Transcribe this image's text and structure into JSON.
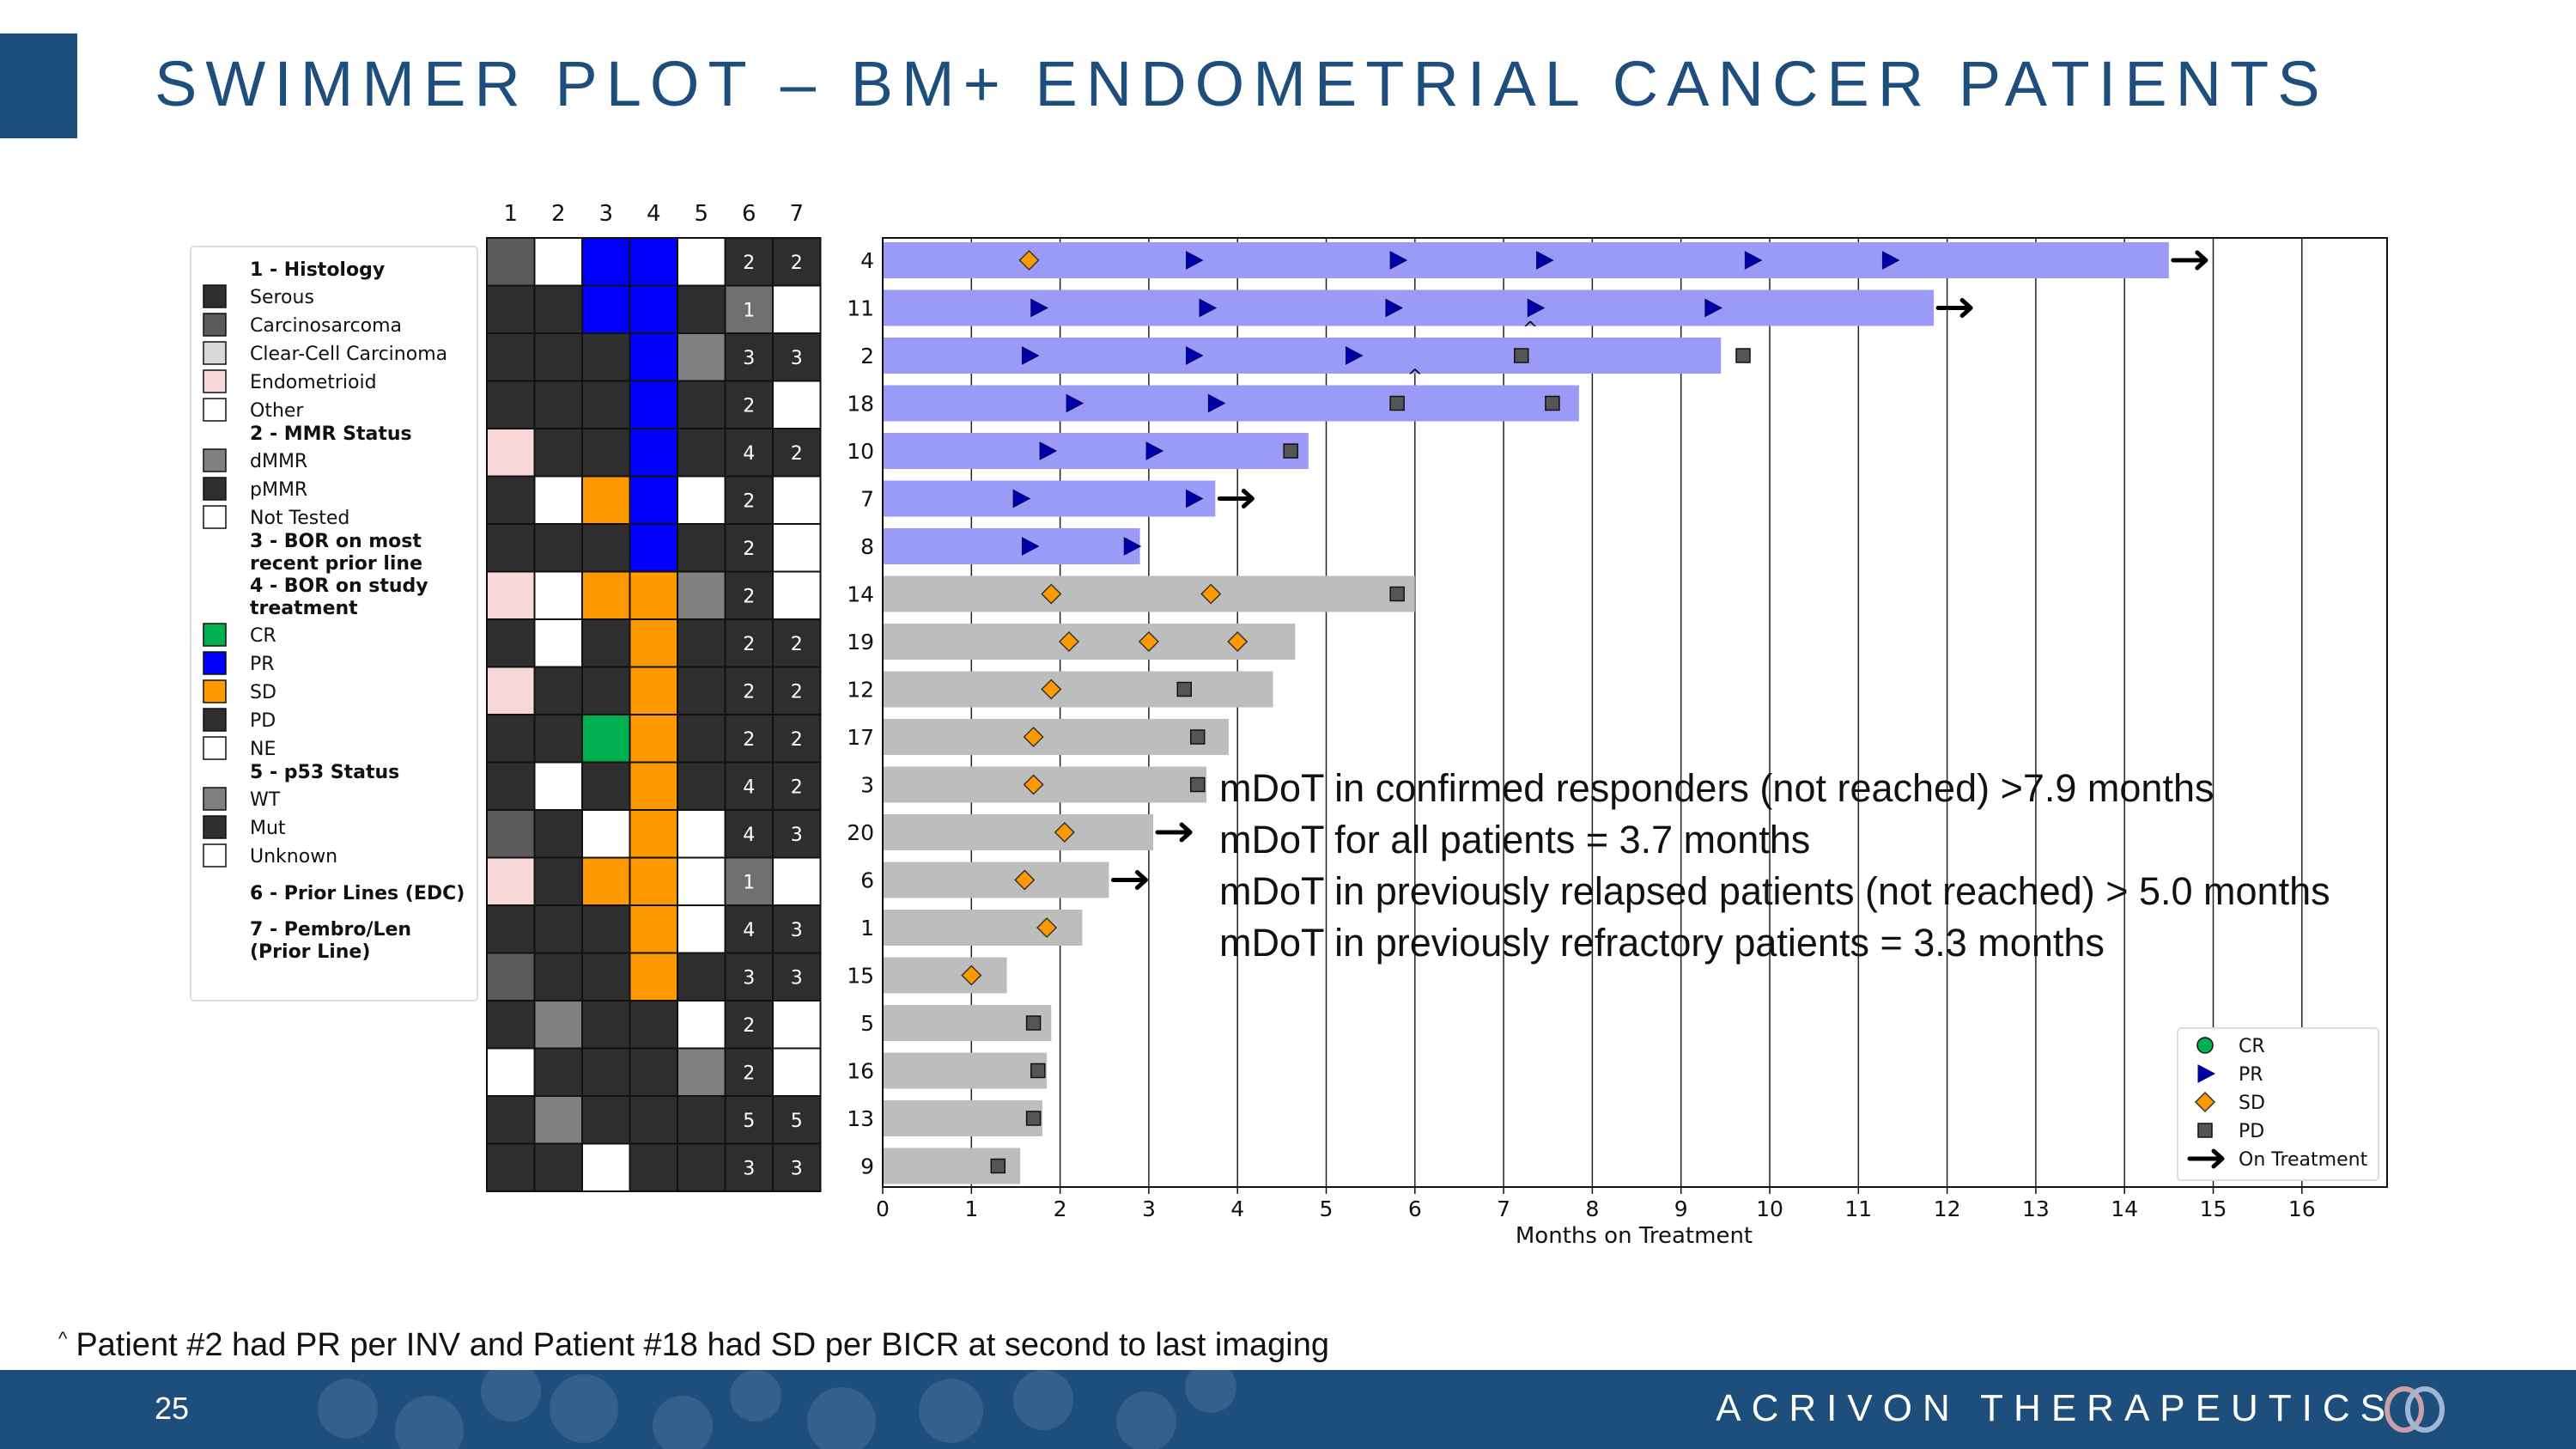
{
  "title": "SWIMMER PLOT – BM+ ENDOMETRIAL CANCER PATIENTS",
  "footnote": {
    "caret": "^",
    "text": "Patient #2 had PR per INV and Patient #18 had SD per BICR at second to last imaging"
  },
  "footer": {
    "page_number": "25",
    "company": "ACRIVON THERAPEUTICS"
  },
  "stats": [
    "mDoT in confirmed responders (not reached) >7.9 months",
    "mDoT for all patients = 3.7 months",
    "mDoT in previously relapsed patients (not reached) > 5.0 months",
    "mDoT in previously refractory patients = 3.3 months"
  ],
  "colors": {
    "brand": "#1d4e7c",
    "responder_bar": "#9b9bf7",
    "other_bar": "#bdbdbd",
    "cr": "#00b050",
    "pr": "#0000ff",
    "sd": "#ff9900",
    "pd": "#2e2e2e",
    "dark": "#2e2e2e",
    "mid": "#5a5a5a",
    "gray": "#808080",
    "light": "#d9d9d9",
    "pink": "#f8d7d7",
    "white": "#ffffff"
  },
  "chart_data": {
    "type": "swimmer",
    "xlabel": "Months on Treatment",
    "xlim": [
      0,
      17
    ],
    "xticks": [
      0,
      1,
      2,
      3,
      4,
      5,
      6,
      7,
      8,
      9,
      10,
      11,
      12,
      13,
      14,
      15,
      16
    ],
    "heatmap_columns": [
      "1",
      "2",
      "3",
      "4",
      "5",
      "6",
      "7"
    ],
    "annotation_caret": "^",
    "patients": [
      {
        "id": "4",
        "duration": 14.5,
        "responder": true,
        "ongoing": true,
        "caret_month": null,
        "events": [
          {
            "t": 1.65,
            "type": "SD"
          },
          {
            "t": 3.5,
            "type": "PR"
          },
          {
            "t": 5.8,
            "type": "PR"
          },
          {
            "t": 7.45,
            "type": "PR"
          },
          {
            "t": 9.8,
            "type": "PR"
          },
          {
            "t": 11.35,
            "type": "PR"
          }
        ],
        "cells": [
          "mid",
          "white",
          "pr",
          "pr",
          "white",
          "2",
          "2"
        ]
      },
      {
        "id": "11",
        "duration": 11.85,
        "responder": true,
        "ongoing": true,
        "caret_month": null,
        "events": [
          {
            "t": 1.75,
            "type": "PR"
          },
          {
            "t": 3.65,
            "type": "PR"
          },
          {
            "t": 5.75,
            "type": "PR"
          },
          {
            "t": 7.35,
            "type": "PR"
          },
          {
            "t": 9.35,
            "type": "PR"
          }
        ],
        "cells": [
          "dark",
          "dark",
          "pr",
          "pr",
          "dark",
          "1",
          "white"
        ]
      },
      {
        "id": "2",
        "duration": 9.45,
        "responder": true,
        "ongoing": false,
        "caret_month": 7.3,
        "events": [
          {
            "t": 1.65,
            "type": "PR"
          },
          {
            "t": 3.5,
            "type": "PR"
          },
          {
            "t": 5.3,
            "type": "PR"
          },
          {
            "t": 7.2,
            "type": "PD"
          },
          {
            "t": 9.7,
            "type": "PD"
          }
        ],
        "cells": [
          "dark",
          "dark",
          "dark",
          "pr",
          "gray",
          "3",
          "3"
        ]
      },
      {
        "id": "18",
        "duration": 7.85,
        "responder": true,
        "ongoing": false,
        "caret_month": 6.0,
        "events": [
          {
            "t": 2.15,
            "type": "PR"
          },
          {
            "t": 3.75,
            "type": "PR"
          },
          {
            "t": 5.8,
            "type": "PD"
          },
          {
            "t": 7.55,
            "type": "PD"
          }
        ],
        "cells": [
          "dark",
          "dark",
          "dark",
          "pr",
          "dark",
          "2",
          "white"
        ]
      },
      {
        "id": "10",
        "duration": 4.8,
        "responder": true,
        "ongoing": false,
        "caret_month": null,
        "events": [
          {
            "t": 1.85,
            "type": "PR"
          },
          {
            "t": 3.05,
            "type": "PR"
          },
          {
            "t": 4.6,
            "type": "PD"
          }
        ],
        "cells": [
          "pink",
          "dark",
          "dark",
          "pr",
          "dark",
          "4",
          "2"
        ]
      },
      {
        "id": "7",
        "duration": 3.75,
        "responder": true,
        "ongoing": true,
        "caret_month": null,
        "events": [
          {
            "t": 1.55,
            "type": "PR"
          },
          {
            "t": 3.5,
            "type": "PR"
          }
        ],
        "cells": [
          "dark",
          "white",
          "sd",
          "pr",
          "white",
          "2",
          "white"
        ]
      },
      {
        "id": "8",
        "duration": 2.9,
        "responder": true,
        "ongoing": false,
        "caret_month": null,
        "events": [
          {
            "t": 1.65,
            "type": "PR"
          },
          {
            "t": 2.8,
            "type": "PR"
          }
        ],
        "cells": [
          "dark",
          "dark",
          "dark",
          "pr",
          "dark",
          "2",
          "white"
        ]
      },
      {
        "id": "14",
        "duration": 6.0,
        "responder": false,
        "ongoing": false,
        "caret_month": null,
        "events": [
          {
            "t": 1.9,
            "type": "SD"
          },
          {
            "t": 3.7,
            "type": "SD"
          },
          {
            "t": 5.8,
            "type": "PD"
          }
        ],
        "cells": [
          "pink",
          "white",
          "sd",
          "sd",
          "gray",
          "2",
          "white"
        ]
      },
      {
        "id": "19",
        "duration": 4.65,
        "responder": false,
        "ongoing": false,
        "caret_month": null,
        "events": [
          {
            "t": 2.1,
            "type": "SD"
          },
          {
            "t": 3.0,
            "type": "SD"
          },
          {
            "t": 4.0,
            "type": "SD"
          }
        ],
        "cells": [
          "dark",
          "white",
          "dark",
          "sd",
          "dark",
          "2",
          "2"
        ]
      },
      {
        "id": "12",
        "duration": 4.4,
        "responder": false,
        "ongoing": false,
        "caret_month": null,
        "events": [
          {
            "t": 1.9,
            "type": "SD"
          },
          {
            "t": 3.4,
            "type": "PD"
          }
        ],
        "cells": [
          "pink",
          "dark",
          "dark",
          "sd",
          "dark",
          "2",
          "2"
        ]
      },
      {
        "id": "17",
        "duration": 3.9,
        "responder": false,
        "ongoing": false,
        "caret_month": null,
        "events": [
          {
            "t": 1.7,
            "type": "SD"
          },
          {
            "t": 3.55,
            "type": "PD"
          }
        ],
        "cells": [
          "dark",
          "dark",
          "cr",
          "sd",
          "dark",
          "2",
          "2"
        ]
      },
      {
        "id": "3",
        "duration": 3.65,
        "responder": false,
        "ongoing": false,
        "caret_month": null,
        "events": [
          {
            "t": 1.7,
            "type": "SD"
          },
          {
            "t": 3.55,
            "type": "PD"
          }
        ],
        "cells": [
          "dark",
          "white",
          "dark",
          "sd",
          "dark",
          "4",
          "2"
        ]
      },
      {
        "id": "20",
        "duration": 3.05,
        "responder": false,
        "ongoing": true,
        "caret_month": null,
        "events": [
          {
            "t": 2.05,
            "type": "SD"
          }
        ],
        "cells": [
          "mid",
          "dark",
          "white",
          "sd",
          "white",
          "4",
          "3"
        ]
      },
      {
        "id": "6",
        "duration": 2.55,
        "responder": false,
        "ongoing": true,
        "caret_month": null,
        "events": [
          {
            "t": 1.6,
            "type": "SD"
          }
        ],
        "cells": [
          "pink",
          "dark",
          "sd",
          "sd",
          "white",
          "1",
          "white"
        ]
      },
      {
        "id": "1",
        "duration": 2.25,
        "responder": false,
        "ongoing": false,
        "caret_month": null,
        "events": [
          {
            "t": 1.85,
            "type": "SD"
          }
        ],
        "cells": [
          "dark",
          "dark",
          "dark",
          "sd",
          "white",
          "4",
          "3"
        ]
      },
      {
        "id": "15",
        "duration": 1.4,
        "responder": false,
        "ongoing": false,
        "caret_month": null,
        "events": [
          {
            "t": 1.0,
            "type": "SD"
          }
        ],
        "cells": [
          "mid",
          "dark",
          "dark",
          "sd",
          "dark",
          "3",
          "3"
        ]
      },
      {
        "id": "5",
        "duration": 1.9,
        "responder": false,
        "ongoing": false,
        "caret_month": null,
        "events": [
          {
            "t": 1.7,
            "type": "PD"
          }
        ],
        "cells": [
          "dark",
          "gray",
          "dark",
          "dark",
          "white",
          "2",
          "white"
        ]
      },
      {
        "id": "16",
        "duration": 1.85,
        "responder": false,
        "ongoing": false,
        "caret_month": null,
        "events": [
          {
            "t": 1.75,
            "type": "PD"
          }
        ],
        "cells": [
          "white",
          "dark",
          "dark",
          "dark",
          "gray",
          "2",
          "white"
        ]
      },
      {
        "id": "13",
        "duration": 1.8,
        "responder": false,
        "ongoing": false,
        "caret_month": null,
        "events": [
          {
            "t": 1.7,
            "type": "PD"
          }
        ],
        "cells": [
          "dark",
          "gray",
          "dark",
          "dark",
          "dark",
          "5",
          "5"
        ]
      },
      {
        "id": "9",
        "duration": 1.55,
        "responder": false,
        "ongoing": false,
        "caret_month": null,
        "events": [
          {
            "t": 1.3,
            "type": "PD"
          }
        ],
        "cells": [
          "dark",
          "dark",
          "white",
          "dark",
          "dark",
          "3",
          "3"
        ]
      }
    ],
    "left_legend": [
      {
        "kind": "header",
        "text": "1 - Histology"
      },
      {
        "kind": "item",
        "swatch": "dark",
        "text": "Serous"
      },
      {
        "kind": "item",
        "swatch": "mid",
        "text": "Carcinosarcoma"
      },
      {
        "kind": "item",
        "swatch": "light",
        "text": "Clear-Cell Carcinoma"
      },
      {
        "kind": "item",
        "swatch": "pink",
        "text": "Endometrioid"
      },
      {
        "kind": "item",
        "swatch": "white",
        "text": "Other"
      },
      {
        "kind": "header",
        "text": "2 - MMR Status"
      },
      {
        "kind": "item",
        "swatch": "gray",
        "text": "dMMR"
      },
      {
        "kind": "item",
        "swatch": "dark",
        "text": "pMMR"
      },
      {
        "kind": "item",
        "swatch": "white",
        "text": "Not Tested"
      },
      {
        "kind": "header",
        "text": "3 - BOR on most"
      },
      {
        "kind": "header",
        "text": "recent prior line"
      },
      {
        "kind": "header",
        "text": "4 - BOR on study"
      },
      {
        "kind": "header",
        "text": "treatment"
      },
      {
        "kind": "item",
        "swatch": "cr",
        "text": "CR"
      },
      {
        "kind": "item",
        "swatch": "pr",
        "text": "PR"
      },
      {
        "kind": "item",
        "swatch": "sd",
        "text": "SD"
      },
      {
        "kind": "item",
        "swatch": "dark",
        "text": "PD"
      },
      {
        "kind": "item",
        "swatch": "white",
        "text": "NE"
      },
      {
        "kind": "header",
        "text": "5 - p53 Status"
      },
      {
        "kind": "item",
        "swatch": "gray",
        "text": "WT"
      },
      {
        "kind": "item",
        "swatch": "dark",
        "text": "Mut"
      },
      {
        "kind": "item",
        "swatch": "white",
        "text": "Unknown"
      },
      {
        "kind": "gap"
      },
      {
        "kind": "header",
        "text": "6 - Prior Lines (EDC)"
      },
      {
        "kind": "gap"
      },
      {
        "kind": "header",
        "text": "7 - Pembro/Len"
      },
      {
        "kind": "header",
        "text": "(Prior Line)"
      }
    ],
    "right_legend": [
      {
        "marker": "CR",
        "text": "CR"
      },
      {
        "marker": "PR",
        "text": "PR"
      },
      {
        "marker": "SD",
        "text": "SD"
      },
      {
        "marker": "PD",
        "text": "PD"
      },
      {
        "marker": "arrow",
        "text": "On Treatment"
      }
    ]
  }
}
